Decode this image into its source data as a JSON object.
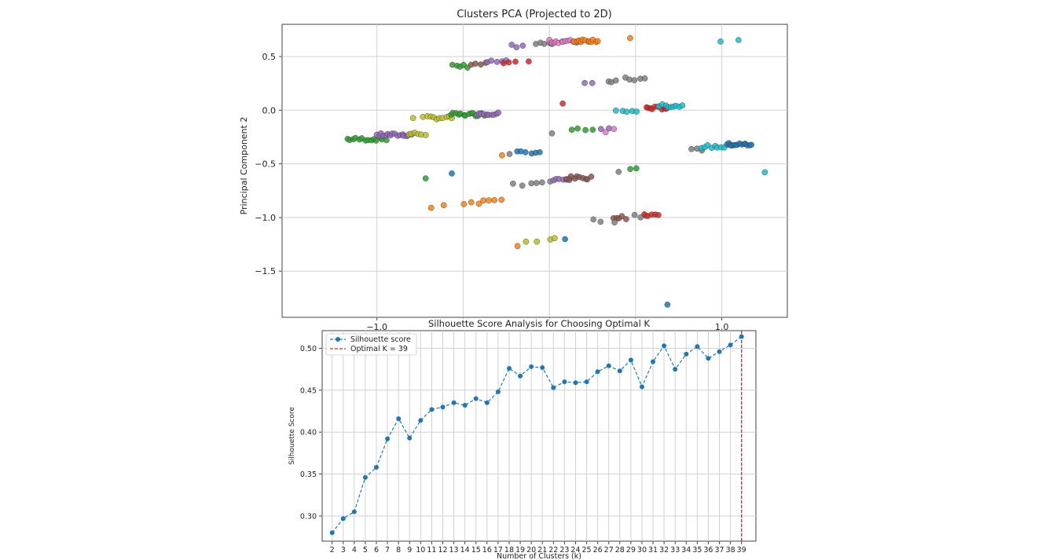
{
  "chart_data": [
    {
      "type": "scatter",
      "title": "Clusters PCA (Projected to 2D)",
      "xlabel": "",
      "ylabel": "Principal Component 2",
      "xlim": [
        -1.55,
        1.38
      ],
      "ylim": [
        -1.93,
        0.8
      ],
      "xticks": [
        -1.0,
        -0.5,
        0.0,
        0.5,
        1.0
      ],
      "xtick_labels": [
        "−1.0",
        "",
        "",
        "",
        "1.0"
      ],
      "yticks": [
        0.5,
        0.0,
        -0.5,
        -1.0,
        -1.5
      ],
      "ytick_labels": [
        "0.5",
        "0.0",
        "−0.5",
        "−1.0",
        "−1.5"
      ],
      "grid": true,
      "colors": [
        "#1f77b4",
        "#ff7f0e",
        "#2ca02c",
        "#d62728",
        "#9467bd",
        "#8c564b",
        "#e377c2",
        "#7f7f7f",
        "#bcbd22",
        "#17becf"
      ],
      "point_groups": [
        {
          "color": "#2ca02c",
          "x0": -1.17,
          "x1": -0.95,
          "y": -0.27,
          "n": 14
        },
        {
          "color": "#9467bd",
          "x0": -1.0,
          "x1": -0.8,
          "y": -0.23,
          "n": 16
        },
        {
          "color": "#bcbd22",
          "x0": -0.82,
          "x1": -0.72,
          "y": -0.22,
          "n": 6
        },
        {
          "color": "#bcbd22",
          "x0": -0.73,
          "x1": -0.56,
          "y": -0.07,
          "n": 10
        },
        {
          "color": "#2ca02c",
          "x0": -0.57,
          "x1": -0.38,
          "y": -0.04,
          "n": 14
        },
        {
          "color": "#9467bd",
          "x0": -0.42,
          "x1": -0.29,
          "y": -0.03,
          "n": 10
        },
        {
          "color": "#bcbd22",
          "x0": -0.79,
          "x1": -0.79,
          "y": -0.08,
          "n": 1
        },
        {
          "color": "#2ca02c",
          "x0": -0.56,
          "x1": -0.47,
          "y": 0.41,
          "n": 5
        },
        {
          "color": "#8c564b",
          "x0": -0.45,
          "x1": -0.37,
          "y": 0.43,
          "n": 4
        },
        {
          "color": "#9467bd",
          "x0": -0.36,
          "x1": -0.25,
          "y": 0.45,
          "n": 5
        },
        {
          "color": "#d62728",
          "x0": -0.27,
          "x1": -0.2,
          "y": 0.44,
          "n": 3
        },
        {
          "color": "#d62728",
          "x0": -0.12,
          "x1": -0.12,
          "y": 0.44,
          "n": 1
        },
        {
          "color": "#9467bd",
          "x0": -0.22,
          "x1": -0.16,
          "y": 0.6,
          "n": 3
        },
        {
          "color": "#7f7f7f",
          "x0": -0.08,
          "x1": 0.02,
          "y": 0.62,
          "n": 5
        },
        {
          "color": "#e377c2",
          "x0": 0.0,
          "x1": 0.18,
          "y": 0.64,
          "n": 14
        },
        {
          "color": "#ff7f0e",
          "x0": 0.15,
          "x1": 0.28,
          "y": 0.65,
          "n": 12
        },
        {
          "color": "#ff7f0e",
          "x0": 0.47,
          "x1": 0.47,
          "y": 0.68,
          "n": 1
        },
        {
          "color": "#17becf",
          "x0": 0.99,
          "x1": 0.99,
          "y": 0.64,
          "n": 1
        },
        {
          "color": "#17becf",
          "x0": 1.1,
          "x1": 1.1,
          "y": 0.65,
          "n": 1
        },
        {
          "color": "#9467bd",
          "x0": 0.2,
          "x1": 0.25,
          "y": 0.24,
          "n": 2
        },
        {
          "color": "#7f7f7f",
          "x0": 0.34,
          "x1": 0.39,
          "y": 0.27,
          "n": 3
        },
        {
          "color": "#7f7f7f",
          "x0": 0.44,
          "x1": 0.55,
          "y": 0.29,
          "n": 5
        },
        {
          "color": "#d62728",
          "x0": 0.08,
          "x1": 0.08,
          "y": 0.06,
          "n": 1
        },
        {
          "color": "#17becf",
          "x0": 0.39,
          "x1": 0.51,
          "y": -0.01,
          "n": 5
        },
        {
          "color": "#d62728",
          "x0": 0.56,
          "x1": 0.68,
          "y": 0.02,
          "n": 10
        },
        {
          "color": "#17becf",
          "x0": 0.64,
          "x1": 0.77,
          "y": 0.04,
          "n": 9
        },
        {
          "color": "#2ca02c",
          "x0": 0.13,
          "x1": 0.25,
          "y": -0.17,
          "n": 4
        },
        {
          "color": "#7f7f7f",
          "x0": 0.02,
          "x1": 0.02,
          "y": -0.21,
          "n": 1
        },
        {
          "color": "#9467bd",
          "x0": 0.3,
          "x1": 0.34,
          "y": -0.18,
          "n": 2
        },
        {
          "color": "#e377c2",
          "x0": 0.33,
          "x1": 0.37,
          "y": -0.19,
          "n": 2
        },
        {
          "color": "#7f7f7f",
          "x0": 0.82,
          "x1": 0.89,
          "y": -0.37,
          "n": 3
        },
        {
          "color": "#17becf",
          "x0": 0.88,
          "x1": 1.02,
          "y": -0.34,
          "n": 8
        },
        {
          "color": "#1f77b4",
          "x0": 1.03,
          "x1": 1.17,
          "y": -0.32,
          "n": 14
        },
        {
          "color": "#17becf",
          "x0": 1.25,
          "x1": 1.25,
          "y": -0.59,
          "n": 1
        },
        {
          "color": "#ff7f0e",
          "x0": -0.27,
          "x1": -0.27,
          "y": -0.42,
          "n": 1
        },
        {
          "color": "#7f7f7f",
          "x0": -0.23,
          "x1": -0.23,
          "y": -0.4,
          "n": 1
        },
        {
          "color": "#1f77b4",
          "x0": -0.19,
          "x1": -0.05,
          "y": -0.39,
          "n": 6
        },
        {
          "color": "#2ca02c",
          "x0": -0.72,
          "x1": -0.72,
          "y": -0.63,
          "n": 1
        },
        {
          "color": "#1f77b4",
          "x0": -0.56,
          "x1": -0.56,
          "y": -0.59,
          "n": 1
        },
        {
          "color": "#2ca02c",
          "x0": 0.47,
          "x1": 0.51,
          "y": -0.55,
          "n": 2
        },
        {
          "color": "#7f7f7f",
          "x0": -0.21,
          "x1": -0.11,
          "y": -0.69,
          "n": 3
        },
        {
          "color": "#7f7f7f",
          "x0": -0.08,
          "x1": 0.0,
          "y": -0.67,
          "n": 3
        },
        {
          "color": "#9467bd",
          "x0": 0.02,
          "x1": 0.12,
          "y": -0.65,
          "n": 6
        },
        {
          "color": "#8c564b",
          "x0": 0.1,
          "x1": 0.24,
          "y": -0.63,
          "n": 10
        },
        {
          "color": "#7f7f7f",
          "x0": 0.4,
          "x1": 0.4,
          "y": -0.56,
          "n": 1
        },
        {
          "color": "#ff7f0e",
          "x0": -0.68,
          "x1": -0.61,
          "y": -0.9,
          "n": 2
        },
        {
          "color": "#ff7f0e",
          "x0": -0.49,
          "x1": -0.41,
          "y": -0.86,
          "n": 3
        },
        {
          "color": "#ff7f0e",
          "x0": -0.38,
          "x1": -0.28,
          "y": -0.84,
          "n": 4
        },
        {
          "color": "#ff7f0e",
          "x0": -0.19,
          "x1": -0.19,
          "y": -1.26,
          "n": 1
        },
        {
          "color": "#bcbd22",
          "x0": -0.14,
          "x1": -0.14,
          "y": -1.23,
          "n": 1
        },
        {
          "color": "#bcbd22",
          "x0": -0.08,
          "x1": -0.07,
          "y": -1.21,
          "n": 1
        },
        {
          "color": "#bcbd22",
          "x0": 0.01,
          "x1": 0.03,
          "y": -1.2,
          "n": 2
        },
        {
          "color": "#1f77b4",
          "x0": 0.09,
          "x1": 0.09,
          "y": -1.21,
          "n": 1
        },
        {
          "color": "#7f7f7f",
          "x0": 0.25,
          "x1": 0.3,
          "y": -1.03,
          "n": 2
        },
        {
          "color": "#8c564b",
          "x0": 0.37,
          "x1": 0.44,
          "y": -1.0,
          "n": 5
        },
        {
          "color": "#7f7f7f",
          "x0": 0.38,
          "x1": 0.38,
          "y": -1.04,
          "n": 1
        },
        {
          "color": "#7f7f7f",
          "x0": 0.49,
          "x1": 0.56,
          "y": -0.99,
          "n": 3
        },
        {
          "color": "#d62728",
          "x0": 0.55,
          "x1": 0.63,
          "y": -0.98,
          "n": 5
        },
        {
          "color": "#1f77b4",
          "x0": 0.69,
          "x1": 0.69,
          "y": -1.82,
          "n": 1
        }
      ]
    },
    {
      "type": "line",
      "title": "Silhouette Score Analysis for Choosing Optimal K",
      "xlabel": "Number of Clusters (k)",
      "ylabel": "Silhouette Score",
      "x": [
        2,
        3,
        4,
        5,
        6,
        7,
        8,
        9,
        10,
        11,
        12,
        13,
        14,
        15,
        16,
        17,
        18,
        19,
        20,
        21,
        22,
        23,
        24,
        25,
        26,
        27,
        28,
        29,
        30,
        31,
        32,
        33,
        34,
        35,
        36,
        37,
        38,
        39
      ],
      "series": [
        {
          "name": "Silhouette score",
          "color": "#1f77b4",
          "values": [
            0.28,
            0.297,
            0.305,
            0.346,
            0.358,
            0.392,
            0.416,
            0.393,
            0.414,
            0.427,
            0.43,
            0.435,
            0.432,
            0.44,
            0.435,
            0.448,
            0.476,
            0.467,
            0.478,
            0.477,
            0.453,
            0.46,
            0.459,
            0.46,
            0.472,
            0.479,
            0.473,
            0.486,
            0.454,
            0.484,
            0.503,
            0.475,
            0.493,
            0.502,
            0.488,
            0.496,
            0.504,
            0.514
          ]
        }
      ],
      "vline": {
        "x": 39,
        "label": "Optimal K = 39",
        "color": "#d62728"
      },
      "xlim": [
        1.1,
        40.3
      ],
      "ylim": [
        0.27,
        0.521
      ],
      "yticks": [
        0.3,
        0.35,
        0.4,
        0.45,
        0.5
      ],
      "ytick_labels": [
        "0.30",
        "0.35",
        "0.40",
        "0.45",
        "0.50"
      ],
      "grid": true,
      "legend_position": "top-left"
    }
  ]
}
